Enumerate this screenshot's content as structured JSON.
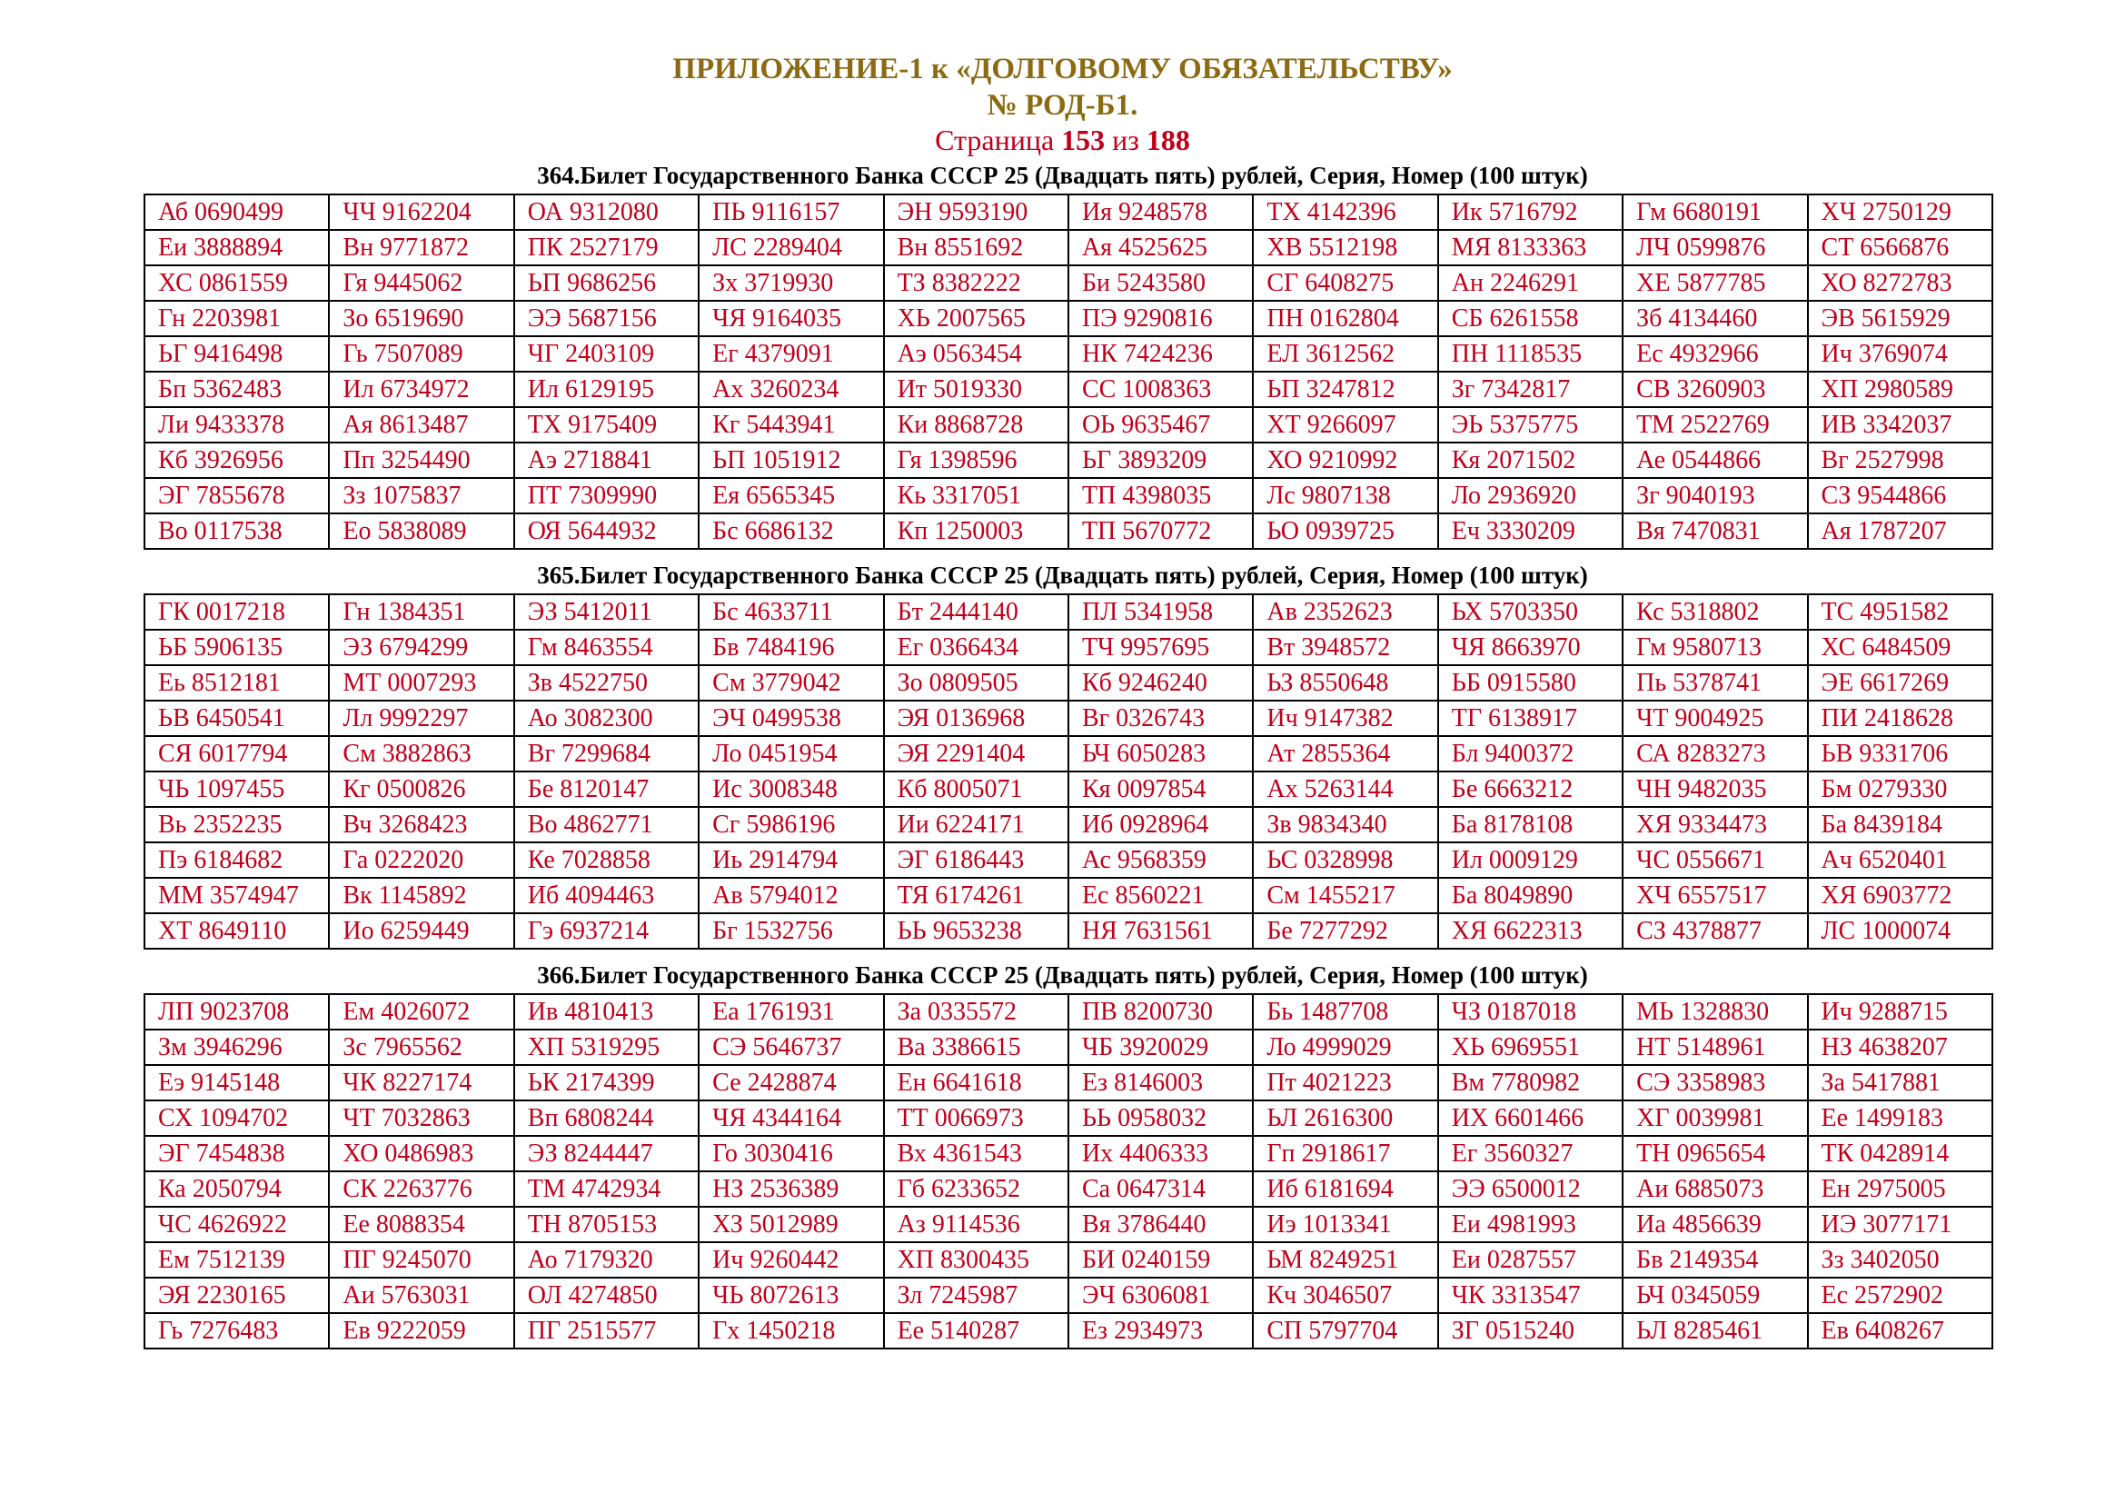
{
  "header": {
    "line1": "ПРИЛОЖЕНИЕ-1 к «ДОЛГОВОМУ ОБЯЗАТЕЛЬСТВУ»",
    "line2": "№ РОД-Б1.",
    "page_word": "Страница",
    "page_current": "153",
    "page_of": "из",
    "page_total": "188"
  },
  "colors": {
    "title": "#8c6a12",
    "accent_red": "#c0001a",
    "border": "#000000"
  },
  "sections": [
    {
      "caption": "364.Билет Государственного Банка СССР 25 (Двадцать пять) рублей, Серия, Номер (100 штук)",
      "rows": [
        [
          "Аб 0690499",
          "ЧЧ 9162204",
          "ОА 9312080",
          "ПЬ 9116157",
          "ЭН 9593190",
          "Ия 9248578",
          "ТХ 4142396",
          "Ик 5716792",
          "Гм 6680191",
          "ХЧ 2750129"
        ],
        [
          "Еи 3888894",
          "Вн 9771872",
          "ПК 2527179",
          "ЛС 2289404",
          "Вн 8551692",
          "Ая 4525625",
          "ХВ 5512198",
          "МЯ 8133363",
          "ЛЧ 0599876",
          "СТ 6566876"
        ],
        [
          "ХС 0861559",
          "Гя 9445062",
          "ЬП 9686256",
          "Зх 3719930",
          "ТЗ 8382222",
          "Би 5243580",
          "СГ 6408275",
          "Ан 2246291",
          "ХЕ 5877785",
          "ХО 8272783"
        ],
        [
          "Гн 2203981",
          "Зо 6519690",
          "ЭЭ 5687156",
          "ЧЯ 9164035",
          "ХЬ 2007565",
          "ПЭ 9290816",
          "ПН 0162804",
          "СБ 6261558",
          "Зб 4134460",
          "ЭВ 5615929"
        ],
        [
          "ЬГ 9416498",
          "Гь 7507089",
          "ЧГ 2403109",
          "Ег 4379091",
          "Аэ 0563454",
          "НК 7424236",
          "ЕЛ 3612562",
          "ПН 1118535",
          "Ес 4932966",
          "Ич 3769074"
        ],
        [
          "Бп 5362483",
          "Ил 6734972",
          "Ил 6129195",
          "Ах 3260234",
          "Ит 5019330",
          "СС 1008363",
          "ЬП 3247812",
          "Зг 7342817",
          "СВ 3260903",
          "ХП 2980589"
        ],
        [
          "Ли 9433378",
          "Ая 8613487",
          "ТХ 9175409",
          "Кг 5443941",
          "Ки 8868728",
          "ОЬ 9635467",
          "ХТ 9266097",
          "ЭЬ 5375775",
          "ТМ 2522769",
          "ИВ 3342037"
        ],
        [
          "Кб 3926956",
          "Пп 3254490",
          "Аэ 2718841",
          "ЬП 1051912",
          "Гя 1398596",
          "ЬГ 3893209",
          "ХО 9210992",
          "Кя 2071502",
          "Ае 0544866",
          "Вг 2527998"
        ],
        [
          "ЭГ 7855678",
          "Зз 1075837",
          "ПТ 7309990",
          "Ея 6565345",
          "Кь 3317051",
          "ТП 4398035",
          "Лс 9807138",
          "Ло 2936920",
          "Зг 9040193",
          "СЗ 9544866"
        ],
        [
          "Во 0117538",
          "Ео 5838089",
          "ОЯ 5644932",
          "Бс 6686132",
          "Кп 1250003",
          "ТП 5670772",
          "ЬО 0939725",
          "Еч 3330209",
          "Вя 7470831",
          "Ая 1787207"
        ]
      ]
    },
    {
      "caption": "365.Билет Государственного Банка СССР 25 (Двадцать пять) рублей, Серия, Номер (100 штук)",
      "rows": [
        [
          "ГК 0017218",
          "Гн 1384351",
          "ЭЗ 5412011",
          "Бс 4633711",
          "Бт 2444140",
          "ПЛ 5341958",
          "Ав 2352623",
          "ЬХ 5703350",
          "Кс 5318802",
          "ТС 4951582"
        ],
        [
          "ЬБ 5906135",
          "ЭЗ 6794299",
          "Гм 8463554",
          "Бв 7484196",
          "Ег 0366434",
          "ТЧ 9957695",
          "Вт 3948572",
          "ЧЯ 8663970",
          "Гм 9580713",
          "ХС 6484509"
        ],
        [
          "Еь 8512181",
          "МТ 0007293",
          "Зв 4522750",
          "См 3779042",
          "Зо 0809505",
          "Кб 9246240",
          "ЬЗ 8550648",
          "ЬБ 0915580",
          "Пь 5378741",
          "ЭЕ 6617269"
        ],
        [
          "ЬВ 6450541",
          "Лл 9992297",
          "Ао 3082300",
          "ЭЧ 0499538",
          "ЭЯ 0136968",
          "Вг 0326743",
          "Ич 9147382",
          "ТГ 6138917",
          "ЧТ 9004925",
          "ПИ 2418628"
        ],
        [
          "СЯ 6017794",
          "См 3882863",
          "Вг 7299684",
          "Ло 0451954",
          "ЭЯ 2291404",
          "ЬЧ 6050283",
          "Ат 2855364",
          "Бл 9400372",
          "СА 8283273",
          "ЬВ 9331706"
        ],
        [
          "ЧЬ 1097455",
          "Кг 0500826",
          "Бе 8120147",
          "Ис 3008348",
          "Кб 8005071",
          "Кя 0097854",
          "Ах 5263144",
          "Бе 6663212",
          "ЧН 9482035",
          "Бм 0279330"
        ],
        [
          "Вь 2352235",
          "Вч 3268423",
          "Во 4862771",
          "Сг 5986196",
          "Ии 6224171",
          "Иб 0928964",
          "Зв 9834340",
          "Ба 8178108",
          "ХЯ 9334473",
          "Ба 8439184"
        ],
        [
          "Пэ 6184682",
          "Га 0222020",
          "Ке 7028858",
          "Иь 2914794",
          "ЭГ 6186443",
          "Ас 9568359",
          "ЬС 0328998",
          "Ил 0009129",
          "ЧС 0556671",
          "Ач 6520401"
        ],
        [
          "ММ 3574947",
          "Вк 1145892",
          "Иб 4094463",
          "Ав 5794012",
          "ТЯ 6174261",
          "Ес 8560221",
          "См 1455217",
          "Ба 8049890",
          "ХЧ 6557517",
          "ХЯ 6903772"
        ],
        [
          "ХТ 8649110",
          "Ио 6259449",
          "Гэ 6937214",
          "Бг 1532756",
          "ЬЬ 9653238",
          "НЯ 7631561",
          "Бе 7277292",
          "ХЯ 6622313",
          "СЗ 4378877",
          "ЛС 1000074"
        ]
      ]
    },
    {
      "caption": "366.Билет Государственного Банка СССР 25 (Двадцать пять) рублей, Серия, Номер (100 штук)",
      "rows": [
        [
          "ЛП 9023708",
          "Ем 4026072",
          "Ив 4810413",
          "Еа 1761931",
          "За 0335572",
          "ПВ 8200730",
          "Бь 1487708",
          "ЧЗ 0187018",
          "МЬ 1328830",
          "Ич 9288715"
        ],
        [
          "Зм 3946296",
          "Зс 7965562",
          "ХП 5319295",
          "СЭ 5646737",
          "Ва 3386615",
          "ЧБ 3920029",
          "Ло 4999029",
          "ХЬ 6969551",
          "НТ 5148961",
          "НЗ 4638207"
        ],
        [
          "Еэ 9145148",
          "ЧК 8227174",
          "ЬК 2174399",
          "Се 2428874",
          "Ен 6641618",
          "Ез 8146003",
          "Пт 4021223",
          "Вм 7780982",
          "СЭ 3358983",
          "За 5417881"
        ],
        [
          "СХ 1094702",
          "ЧТ 7032863",
          "Вп 6808244",
          "ЧЯ 4344164",
          "ТТ 0066973",
          "ЬЬ 0958032",
          "ЬЛ 2616300",
          "ИХ 6601466",
          "ХГ 0039981",
          "Ее 1499183"
        ],
        [
          "ЭГ 7454838",
          "ХО 0486983",
          "ЭЗ 8244447",
          "Го 3030416",
          "Вх 4361543",
          "Их 4406333",
          "Гп 2918617",
          "Ег 3560327",
          "ТН 0965654",
          "ТК 0428914"
        ],
        [
          "Ка 2050794",
          "СК 2263776",
          "ТМ 4742934",
          "НЗ 2536389",
          "Гб 6233652",
          "Са 0647314",
          "Иб 6181694",
          "ЭЭ 6500012",
          "Аи 6885073",
          "Ен 2975005"
        ],
        [
          "ЧС 4626922",
          "Ее 8088354",
          "ТН 8705153",
          "ХЗ 5012989",
          "Аз 9114536",
          "Вя 3786440",
          "Иэ 1013341",
          "Еи 4981993",
          "Иа 4856639",
          "ИЭ 3077171"
        ],
        [
          "Ем 7512139",
          "ПГ 9245070",
          "Ао 7179320",
          "Ич 9260442",
          "ХП 8300435",
          "БИ 0240159",
          "ЬМ 8249251",
          "Еи 0287557",
          "Бв 2149354",
          "Зз 3402050"
        ],
        [
          "ЭЯ 2230165",
          "Аи 5763031",
          "ОЛ 4274850",
          "ЧЬ 8072613",
          "Зл 7245987",
          "ЭЧ 6306081",
          "Кч 3046507",
          "ЧК 3313547",
          "ЬЧ 0345059",
          "Ес 2572902"
        ],
        [
          "Гь 7276483",
          "Ев 9222059",
          "ПГ 2515577",
          "Гх 1450218",
          "Ее 5140287",
          "Ез 2934973",
          "СП 5797704",
          "ЗГ 0515240",
          "ЬЛ 8285461",
          "Ев 6408267"
        ]
      ]
    }
  ]
}
